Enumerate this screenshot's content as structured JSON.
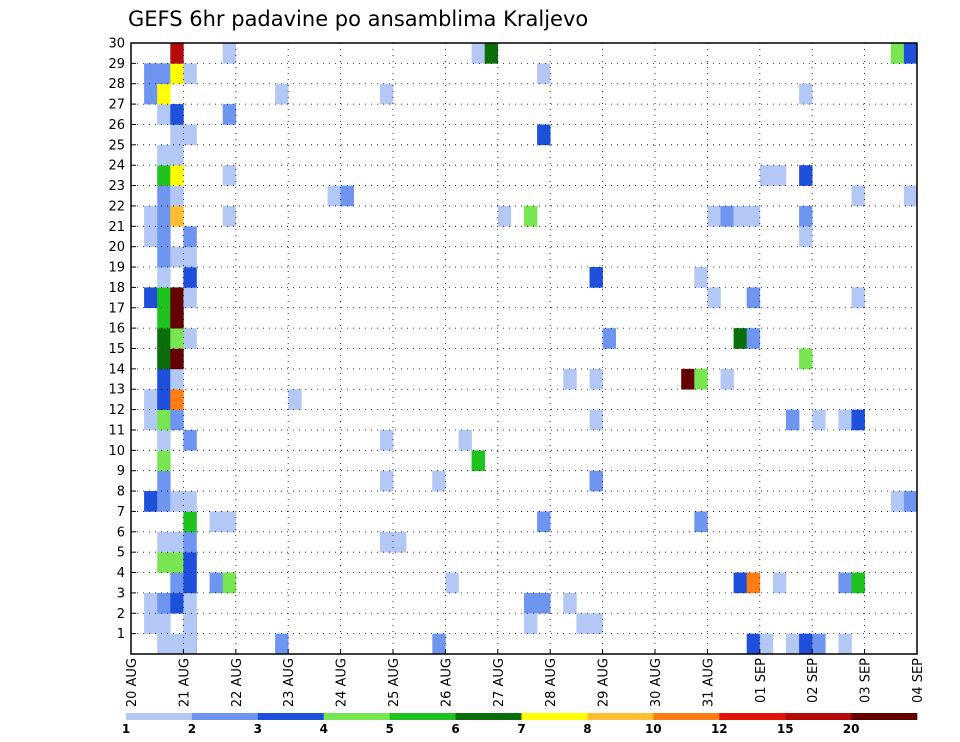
{
  "chart_data": {
    "type": "heatmap",
    "title": "GEFS 6hr padavine po ansamblima Kraljevo",
    "xlabel": "",
    "ylabel": "",
    "x_tick_labels": [
      "20 AUG",
      "21 AUG",
      "22 AUG",
      "23 AUG",
      "24 AUG",
      "25 AUG",
      "26 AUG",
      "27 AUG",
      "28 AUG",
      "29 AUG",
      "30 AUG",
      "31 AUG",
      "01 SEP",
      "02 SEP",
      "03 SEP",
      "04 SEP"
    ],
    "y_tick_labels": [
      "1",
      "2",
      "3",
      "4",
      "5",
      "6",
      "7",
      "8",
      "9",
      "10",
      "11",
      "12",
      "13",
      "14",
      "15",
      "16",
      "17",
      "18",
      "19",
      "20",
      "21",
      "22",
      "23",
      "24",
      "25",
      "26",
      "27",
      "28",
      "29",
      "30"
    ],
    "x_range": [
      0,
      60
    ],
    "y_range": [
      0,
      30
    ],
    "grid": true,
    "colorbar": {
      "labels": [
        "1",
        "2",
        "3",
        "4",
        "5",
        "6",
        "7",
        "8",
        "10",
        "12",
        "15",
        "20"
      ],
      "colors": [
        "#b4c8f5",
        "#6e96f0",
        "#1e50dc",
        "#78e650",
        "#1ec31e",
        "#0a6e0a",
        "#ffff00",
        "#ffbe32",
        "#ff7d14",
        "#e1140a",
        "#b40a0a",
        "#640000"
      ]
    },
    "cells": [
      [
        2,
        0,
        0
      ],
      [
        3,
        0,
        0
      ],
      [
        4,
        0,
        2
      ],
      [
        1,
        1,
        0
      ],
      [
        2,
        1,
        0
      ],
      [
        4,
        1,
        2
      ],
      [
        4,
        1,
        0
      ],
      [
        4,
        0,
        0
      ],
      [
        1,
        2,
        0
      ],
      [
        2,
        2,
        1
      ],
      [
        3,
        2,
        2
      ],
      [
        4,
        2,
        0
      ],
      [
        3,
        3,
        1
      ],
      [
        4,
        3,
        2
      ],
      [
        2,
        4,
        3
      ],
      [
        3,
        4,
        3
      ],
      [
        4,
        4,
        2
      ],
      [
        2,
        5,
        0
      ],
      [
        3,
        5,
        0
      ],
      [
        4,
        5,
        1
      ],
      [
        4,
        6,
        4
      ],
      [
        1,
        7,
        2
      ],
      [
        2,
        7,
        1
      ],
      [
        3,
        7,
        0
      ],
      [
        4,
        7,
        0
      ],
      [
        2,
        8,
        1
      ],
      [
        2,
        9,
        3
      ],
      [
        2,
        10,
        0
      ],
      [
        4,
        10,
        1
      ],
      [
        1,
        11,
        0
      ],
      [
        2,
        11,
        3
      ],
      [
        3,
        11,
        1
      ],
      [
        1,
        12,
        0
      ],
      [
        2,
        12,
        2
      ],
      [
        3,
        12,
        8
      ],
      [
        2,
        13,
        2
      ],
      [
        3,
        13,
        0
      ],
      [
        2,
        14,
        5
      ],
      [
        3,
        14,
        11
      ],
      [
        2,
        15,
        5
      ],
      [
        3,
        15,
        3
      ],
      [
        4,
        15,
        0
      ],
      [
        2,
        16,
        4
      ],
      [
        3,
        16,
        11
      ],
      [
        1,
        17,
        2
      ],
      [
        2,
        17,
        4
      ],
      [
        3,
        17,
        11
      ],
      [
        4,
        17,
        0
      ],
      [
        2,
        18,
        0
      ],
      [
        4,
        18,
        2
      ],
      [
        2,
        19,
        1
      ],
      [
        3,
        19,
        0
      ],
      [
        4,
        19,
        0
      ],
      [
        1,
        20,
        0
      ],
      [
        2,
        20,
        1
      ],
      [
        4,
        20,
        1
      ],
      [
        1,
        21,
        0
      ],
      [
        2,
        21,
        1
      ],
      [
        3,
        21,
        7
      ],
      [
        2,
        22,
        1
      ],
      [
        3,
        22,
        0
      ],
      [
        2,
        23,
        4
      ],
      [
        3,
        23,
        6
      ],
      [
        2,
        24,
        0
      ],
      [
        3,
        24,
        0
      ],
      [
        3,
        25,
        0
      ],
      [
        4,
        25,
        0
      ],
      [
        2,
        26,
        0
      ],
      [
        3,
        26,
        2
      ],
      [
        1,
        27,
        1
      ],
      [
        2,
        27,
        6
      ],
      [
        1,
        28,
        1
      ],
      [
        2,
        28,
        1
      ],
      [
        3,
        28,
        6
      ],
      [
        4,
        28,
        0
      ],
      [
        3,
        29,
        10
      ],
      [
        6,
        6,
        0
      ],
      [
        7,
        6,
        0
      ],
      [
        6,
        3,
        1
      ],
      [
        7,
        3,
        3
      ],
      [
        7,
        23,
        0
      ],
      [
        7,
        21,
        0
      ],
      [
        7,
        26,
        1
      ],
      [
        7,
        29,
        0
      ],
      [
        11,
        0,
        1
      ],
      [
        11,
        27,
        0
      ],
      [
        12,
        12,
        0
      ],
      [
        15,
        22,
        0
      ],
      [
        16,
        22,
        1
      ],
      [
        19,
        5,
        0
      ],
      [
        20,
        5,
        0
      ],
      [
        19,
        8,
        0
      ],
      [
        19,
        10,
        0
      ],
      [
        19,
        27,
        0
      ],
      [
        23,
        0,
        1
      ],
      [
        23,
        8,
        0
      ],
      [
        24,
        3,
        0
      ],
      [
        25,
        10,
        0
      ],
      [
        26,
        9,
        4
      ],
      [
        26,
        29,
        0
      ],
      [
        27,
        29,
        5
      ],
      [
        28,
        21,
        0
      ],
      [
        30,
        21,
        3
      ],
      [
        30,
        2,
        1
      ],
      [
        31,
        2,
        1
      ],
      [
        30,
        1,
        0
      ],
      [
        31,
        6,
        1
      ],
      [
        31,
        25,
        2
      ],
      [
        31,
        28,
        0
      ],
      [
        33,
        13,
        0
      ],
      [
        33,
        2,
        0
      ],
      [
        34,
        1,
        0
      ],
      [
        35,
        1,
        0
      ],
      [
        35,
        13,
        0
      ],
      [
        35,
        11,
        0
      ],
      [
        35,
        18,
        2
      ],
      [
        35,
        8,
        1
      ],
      [
        36,
        15,
        1
      ],
      [
        42,
        13,
        11
      ],
      [
        43,
        13,
        3
      ],
      [
        43,
        6,
        1
      ],
      [
        43,
        18,
        0
      ],
      [
        44,
        17,
        0
      ],
      [
        44,
        21,
        0
      ],
      [
        45,
        21,
        1
      ],
      [
        46,
        21,
        0
      ],
      [
        47,
        21,
        0
      ],
      [
        45,
        13,
        0
      ],
      [
        46,
        15,
        5
      ],
      [
        46,
        3,
        2
      ],
      [
        47,
        3,
        8
      ],
      [
        47,
        0,
        2
      ],
      [
        48,
        0,
        0
      ],
      [
        47,
        15,
        1
      ],
      [
        47,
        17,
        1
      ],
      [
        48,
        23,
        0
      ],
      [
        49,
        23,
        0
      ],
      [
        49,
        3,
        0
      ],
      [
        50,
        11,
        1
      ],
      [
        50,
        0,
        0
      ],
      [
        51,
        0,
        2
      ],
      [
        52,
        0,
        1
      ],
      [
        51,
        23,
        2
      ],
      [
        51,
        27,
        0
      ],
      [
        51,
        21,
        1
      ],
      [
        51,
        20,
        0
      ],
      [
        51,
        14,
        3
      ],
      [
        52,
        11,
        0
      ],
      [
        54,
        11,
        0
      ],
      [
        55,
        11,
        2
      ],
      [
        54,
        0,
        0
      ],
      [
        54,
        3,
        1
      ],
      [
        55,
        3,
        4
      ],
      [
        55,
        17,
        0
      ],
      [
        55,
        22,
        0
      ],
      [
        58,
        7,
        0
      ],
      [
        59,
        7,
        1
      ],
      [
        58,
        29,
        3
      ],
      [
        59,
        29,
        2
      ],
      [
        59,
        22,
        0
      ]
    ]
  }
}
